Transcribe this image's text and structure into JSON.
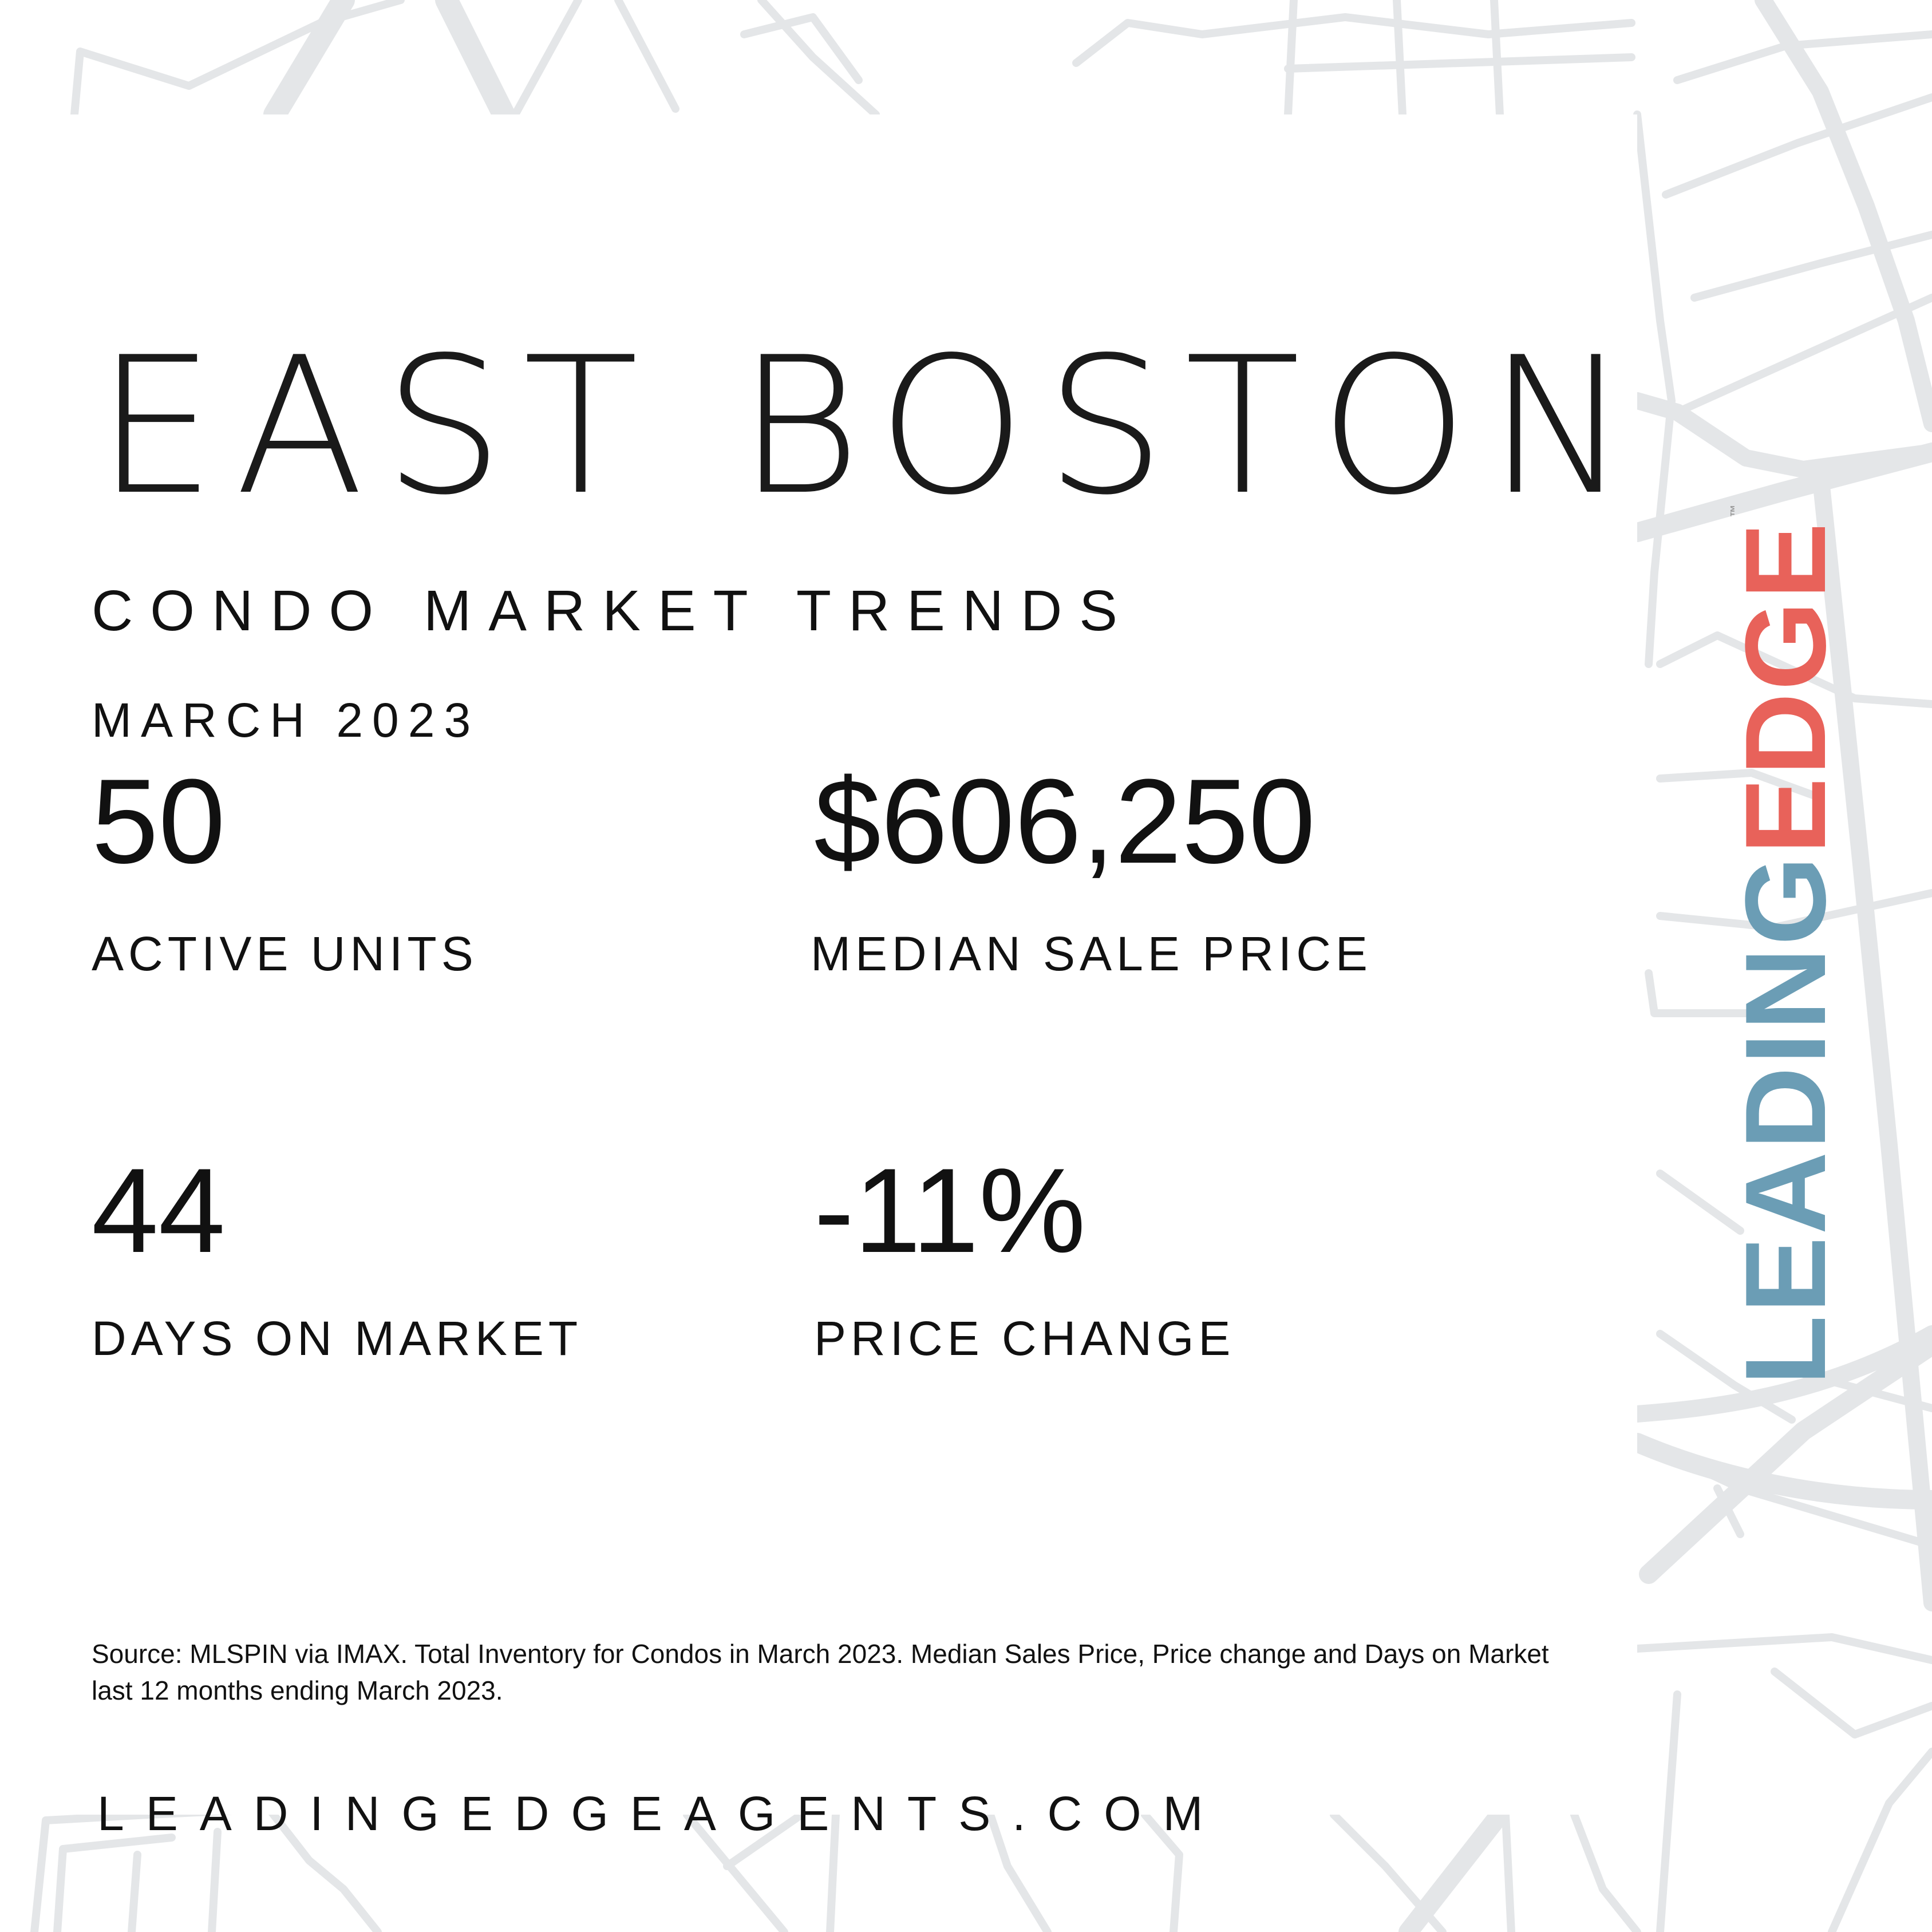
{
  "header": {
    "title": "EAST BOSTON",
    "subtitle": "CONDO MARKET TRENDS",
    "date": "MARCH 2023"
  },
  "stats": [
    {
      "value": "50",
      "label": "ACTIVE UNITS"
    },
    {
      "value": "$606,250",
      "label": "MEDIAN SALE PRICE"
    },
    {
      "value": "44",
      "label": "DAYS ON MARKET"
    },
    {
      "value": "-11%",
      "label": "PRICE CHANGE"
    }
  ],
  "footer": {
    "source": "Source: MLSPIN via IMAX. Total Inventory for Condos in March 2023. Median Sales Price, Price change and Days on Market last 12 months ending March 2023.",
    "website": "LEADINGEDGEAGENTS.COM"
  },
  "logo": {
    "part1": "LEADING",
    "part2": "EDGE",
    "tm": "™"
  },
  "colors": {
    "logo_blue": "#6b9db5",
    "logo_red": "#e8625a",
    "map_lines": "#e4e6e8"
  }
}
